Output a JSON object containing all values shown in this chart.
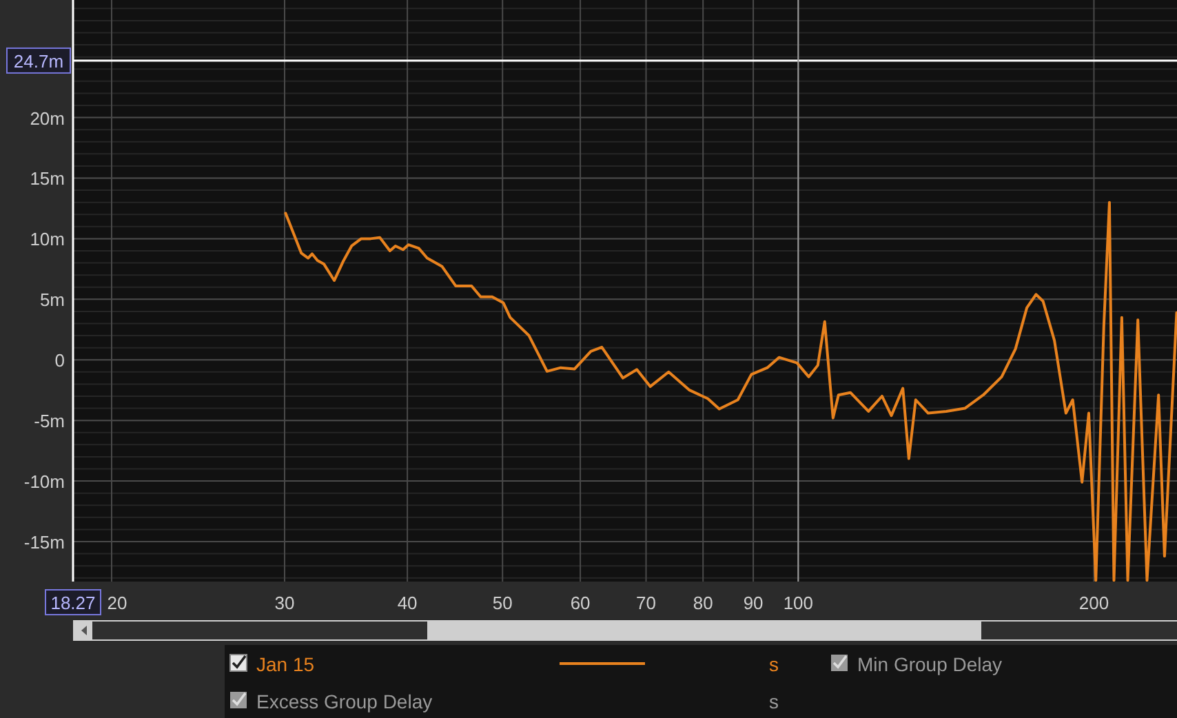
{
  "chart_data": {
    "type": "line",
    "log": "x",
    "grid": true,
    "legend": "bottom",
    "marker": "none",
    "line_style": "solid",
    "xlim": [
      18.27,
      243
    ],
    "ylim": [
      -18.3,
      29.7
    ],
    "xticks": [
      {
        "value": 18.27,
        "label": "18.27"
      },
      20,
      30,
      40,
      50,
      60,
      70,
      80,
      90,
      100,
      200
    ],
    "yticks": [
      {
        "value": -15,
        "label": "-15m"
      },
      {
        "value": -10,
        "label": "-10m"
      },
      {
        "value": -5,
        "label": "-5m"
      },
      0,
      {
        "value": 5,
        "label": "5m"
      },
      {
        "value": 10,
        "label": "10m"
      },
      {
        "value": 15,
        "label": "15m"
      },
      {
        "value": 20,
        "label": "20m"
      }
    ],
    "ref_lines": [
      {
        "axis": "y",
        "value": 24.7,
        "label": "24.7m",
        "color": "#ffffff"
      },
      {
        "axis": "x",
        "value": 100,
        "color": "#9a9a9a"
      }
    ],
    "series": [
      {
        "name": "Jan 15",
        "color": "#e8821e",
        "x": [
          30.07,
          31.2,
          31.7,
          32.0,
          32.4,
          32.9,
          33.7,
          34.4,
          35.1,
          35.9,
          36.7,
          37.5,
          38.4,
          38.9,
          39.6,
          40.1,
          41.1,
          41.9,
          43.4,
          44.8,
          46.5,
          47.5,
          48.8,
          50.1,
          50.9,
          53.2,
          55.5,
          57.3,
          59.2,
          61.5,
          63.1,
          66.3,
          68.5,
          70.7,
          73.8,
          77.5,
          80.9,
          83.1,
          86.8,
          89.6,
          93.0,
          95.6,
          99.7,
          102.5,
          104.7,
          106.4,
          108.5,
          109.9,
          113.0,
          117.9,
          121.7,
          124.4,
          127.8,
          129.6,
          131.7,
          135.6,
          141.5,
          147.8,
          154.3,
          161.1,
          166.4,
          170.9,
          174.6,
          177.5,
          182.3,
          187.3,
          190.3,
          194.5,
          197.6,
          200.9,
          204.7,
          207.4,
          209.6,
          213.5,
          216.5,
          221.7,
          226.5,
          232.7,
          236.0,
          242.8
        ],
        "values": [
          12.1,
          8.8,
          8.4,
          8.75,
          8.2,
          7.9,
          6.55,
          8.1,
          9.4,
          10.0,
          10.0,
          10.1,
          9.0,
          9.4,
          9.1,
          9.5,
          9.2,
          8.4,
          7.7,
          6.1,
          6.1,
          5.2,
          5.2,
          4.7,
          3.5,
          2.0,
          -0.95,
          -0.65,
          -0.75,
          0.7,
          1.05,
          -1.5,
          -0.8,
          -2.2,
          -1.0,
          -2.5,
          -3.2,
          -4.05,
          -3.3,
          -1.2,
          -0.65,
          0.2,
          -0.25,
          -1.4,
          -0.45,
          3.15,
          -4.8,
          -2.9,
          -2.7,
          -4.25,
          -3.0,
          -4.6,
          -2.35,
          -8.15,
          -3.3,
          -4.4,
          -4.25,
          -4.0,
          -2.9,
          -1.4,
          0.9,
          4.3,
          5.4,
          4.85,
          1.6,
          -4.4,
          -3.3,
          -10.1,
          -4.4,
          -18.2,
          2.8,
          13.0,
          -18.2,
          3.5,
          -18.2,
          3.3,
          -18.2,
          -2.9,
          -16.2,
          3.9
        ]
      }
    ],
    "annotations": [
      "s",
      "Min Group Delay",
      "Excess Group Delay",
      "s"
    ]
  }
}
